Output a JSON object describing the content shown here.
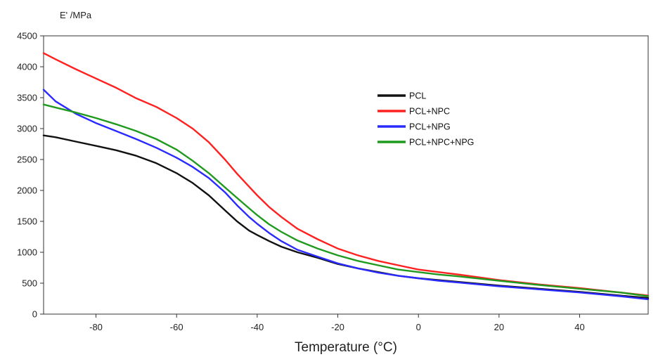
{
  "chart_data": {
    "type": "line",
    "title": "",
    "ylabel": "E' /MPa",
    "xlabel": "Temperature (°C)",
    "xlim": [
      -93,
      57
    ],
    "ylim": [
      0,
      4500
    ],
    "xticks": [
      -80,
      -60,
      -40,
      -20,
      0,
      20,
      40
    ],
    "yticks": [
      0,
      500,
      1000,
      1500,
      2000,
      2500,
      3000,
      3500,
      4000,
      4500
    ],
    "legend_position": "upper-right-center",
    "series": [
      {
        "name": "PCL",
        "color": "#111111",
        "x": [
          -93,
          -90,
          -85,
          -80,
          -75,
          -70,
          -65,
          -60,
          -56,
          -52,
          -48,
          -45,
          -42,
          -40,
          -37,
          -34,
          -30,
          -25,
          -20,
          -15,
          -10,
          -5,
          0,
          5,
          10,
          20,
          30,
          40,
          50,
          57
        ],
        "y": [
          2890,
          2860,
          2790,
          2720,
          2650,
          2560,
          2440,
          2280,
          2120,
          1920,
          1680,
          1500,
          1350,
          1280,
          1180,
          1090,
          1000,
          910,
          810,
          740,
          680,
          620,
          580,
          550,
          520,
          460,
          410,
          360,
          300,
          260
        ]
      },
      {
        "name": "PCL+NPC",
        "color": "#ff2020",
        "x": [
          -93,
          -90,
          -85,
          -80,
          -75,
          -70,
          -65,
          -60,
          -56,
          -52,
          -48,
          -45,
          -42,
          -40,
          -37,
          -34,
          -30,
          -25,
          -20,
          -15,
          -10,
          -5,
          0,
          5,
          10,
          20,
          30,
          40,
          50,
          57
        ],
        "y": [
          4220,
          4120,
          3960,
          3810,
          3660,
          3490,
          3350,
          3170,
          3000,
          2780,
          2500,
          2270,
          2060,
          1920,
          1730,
          1570,
          1380,
          1210,
          1060,
          950,
          860,
          790,
          720,
          680,
          640,
          550,
          480,
          420,
          350,
          300
        ]
      },
      {
        "name": "PCL+NPG",
        "color": "#2a2aff",
        "x": [
          -93,
          -90,
          -85,
          -80,
          -75,
          -70,
          -65,
          -60,
          -56,
          -52,
          -48,
          -45,
          -42,
          -40,
          -37,
          -34,
          -30,
          -25,
          -20,
          -15,
          -10,
          -5,
          0,
          5,
          10,
          20,
          30,
          40,
          50,
          57
        ],
        "y": [
          3630,
          3440,
          3240,
          3090,
          2960,
          2830,
          2690,
          2530,
          2380,
          2200,
          1970,
          1760,
          1570,
          1460,
          1310,
          1180,
          1040,
          930,
          820,
          740,
          670,
          620,
          580,
          540,
          510,
          450,
          400,
          350,
          290,
          240
        ]
      },
      {
        "name": "PCL+NPC+NPG",
        "color": "#1f9a1f",
        "x": [
          -93,
          -90,
          -85,
          -80,
          -75,
          -70,
          -65,
          -60,
          -56,
          -52,
          -48,
          -45,
          -42,
          -40,
          -37,
          -34,
          -30,
          -25,
          -20,
          -15,
          -10,
          -5,
          0,
          5,
          10,
          20,
          30,
          40,
          50,
          57
        ],
        "y": [
          3390,
          3340,
          3260,
          3170,
          3070,
          2960,
          2830,
          2660,
          2480,
          2280,
          2050,
          1880,
          1710,
          1600,
          1450,
          1330,
          1190,
          1060,
          950,
          860,
          790,
          720,
          680,
          640,
          610,
          540,
          470,
          410,
          350,
          290
        ]
      }
    ]
  }
}
